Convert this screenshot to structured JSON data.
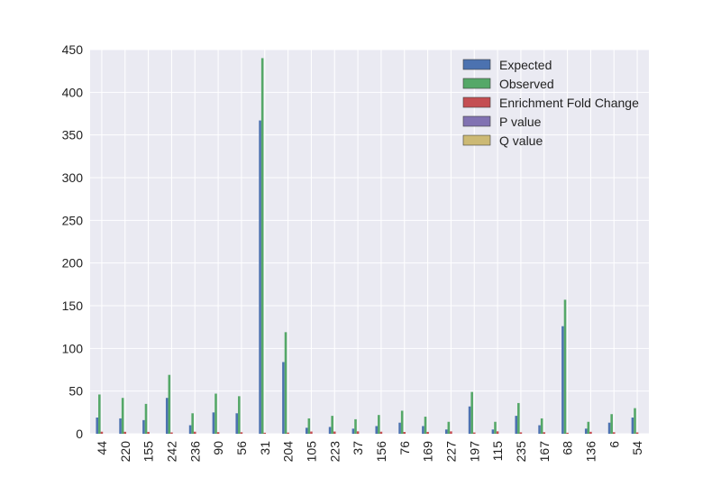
{
  "chart_data": {
    "type": "bar",
    "title": "",
    "xlabel": "",
    "ylabel": "",
    "ylim": [
      0,
      450
    ],
    "yticks": [
      0,
      50,
      100,
      150,
      200,
      250,
      300,
      350,
      400,
      450
    ],
    "grid": true,
    "legend_position": "top-right",
    "categories": [
      "44",
      "220",
      "155",
      "242",
      "236",
      "90",
      "56",
      "31",
      "204",
      "105",
      "223",
      "37",
      "156",
      "76",
      "169",
      "227",
      "197",
      "115",
      "235",
      "167",
      "68",
      "136",
      "6",
      "54"
    ],
    "series": [
      {
        "name": "Expected",
        "color": "#4c72b0",
        "values": [
          19,
          18,
          16,
          42,
          10,
          25,
          24,
          367,
          84,
          7,
          8,
          6,
          9,
          13,
          9,
          5,
          32,
          5,
          21,
          10,
          126,
          6,
          13,
          19
        ]
      },
      {
        "name": "Observed",
        "color": "#55a868",
        "values": [
          46,
          42,
          35,
          69,
          24,
          47,
          44,
          440,
          119,
          18,
          21,
          17,
          22,
          27,
          20,
          14,
          49,
          14,
          36,
          18,
          157,
          14,
          23,
          30
        ]
      },
      {
        "name": "Enrichment Fold Change",
        "color": "#c44e52",
        "values": [
          2.4,
          2.3,
          2.2,
          1.6,
          2.4,
          1.9,
          1.8,
          1.2,
          1.4,
          2.6,
          2.6,
          2.8,
          2.4,
          2.1,
          2.2,
          2.8,
          1.5,
          2.8,
          1.7,
          1.8,
          1.2,
          2.3,
          1.8,
          1.6
        ]
      },
      {
        "name": "P value",
        "color": "#8172b2",
        "values": [
          0.0,
          0.0,
          0.0,
          0.0,
          0.0,
          0.0,
          0.0,
          0.0,
          0.0,
          0.0,
          0.0,
          0.0,
          0.0,
          0.0,
          0.0,
          0.0,
          0.0,
          0.0,
          0.0,
          0.0,
          0.0,
          0.0,
          0.0,
          0.0
        ]
      },
      {
        "name": "Q value",
        "color": "#ccb974",
        "values": [
          0.0,
          0.0,
          0.0,
          0.0,
          0.0,
          0.0,
          0.0,
          0.0,
          0.0,
          0.0,
          0.0,
          0.0,
          0.0,
          0.0,
          0.0,
          0.0,
          0.0,
          0.0,
          0.0,
          0.0,
          0.0,
          0.0,
          0.0,
          0.0
        ]
      }
    ]
  }
}
